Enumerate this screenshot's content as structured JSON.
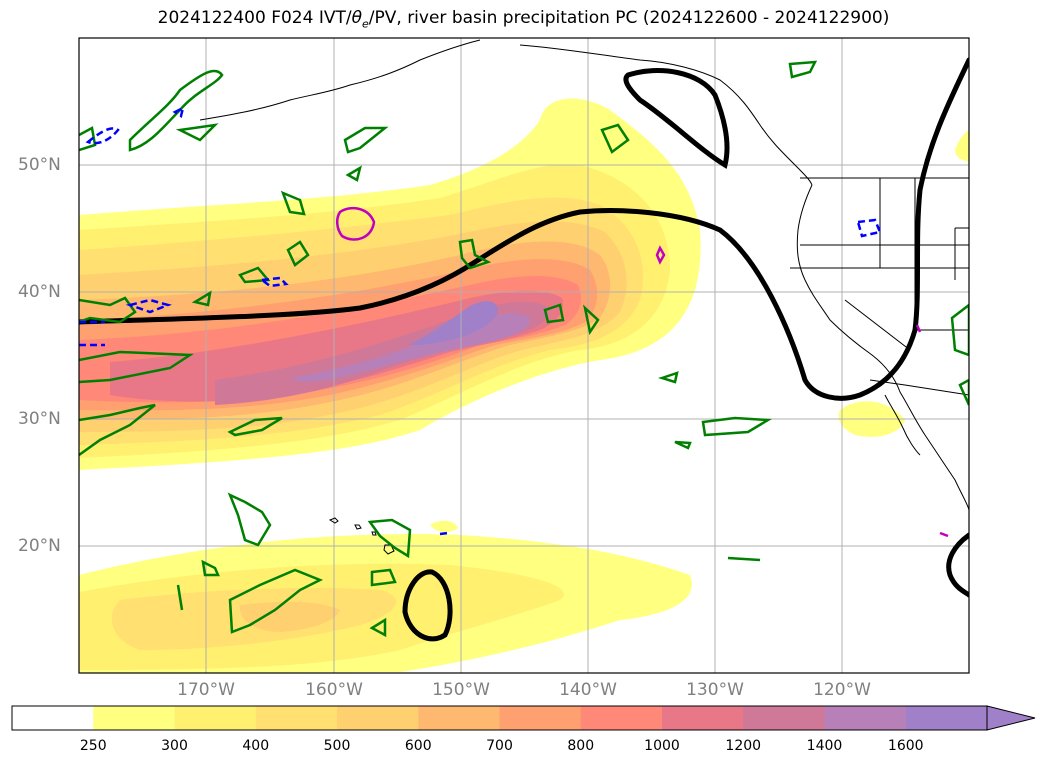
{
  "title": {
    "prefix": "2024122400 F024 IVT/",
    "theta": "θ",
    "theta_sub": "e",
    "suffix": "/PV, river basin precipitation PC (2024122600 - 2024122900)"
  },
  "axes": {
    "lat_labels": [
      "50°N",
      "40°N",
      "30°N",
      "20°N"
    ],
    "lon_labels": [
      "170°W",
      "160°W",
      "150°W",
      "140°W",
      "130°W",
      "120°W"
    ]
  },
  "colorbar": {
    "levels": [
      "250",
      "300",
      "400",
      "500",
      "600",
      "700",
      "800",
      "1000",
      "1200",
      "1400",
      "1600"
    ],
    "colors": [
      "#ffffff",
      "#ffff80",
      "#fff070",
      "#ffe070",
      "#ffd070",
      "#ffb870",
      "#ffa070",
      "#ff8878",
      "#e87888",
      "#d07898",
      "#b880b8",
      "#a080c8"
    ],
    "extend": "max"
  },
  "legend_colors": {
    "theta_e_contour": "#000000",
    "pv_positive": "#008000",
    "pv_negative": "#0000ff",
    "precip_contour": "#c000c0",
    "coastline": "#000000",
    "grid": "#b0b0b0"
  }
}
